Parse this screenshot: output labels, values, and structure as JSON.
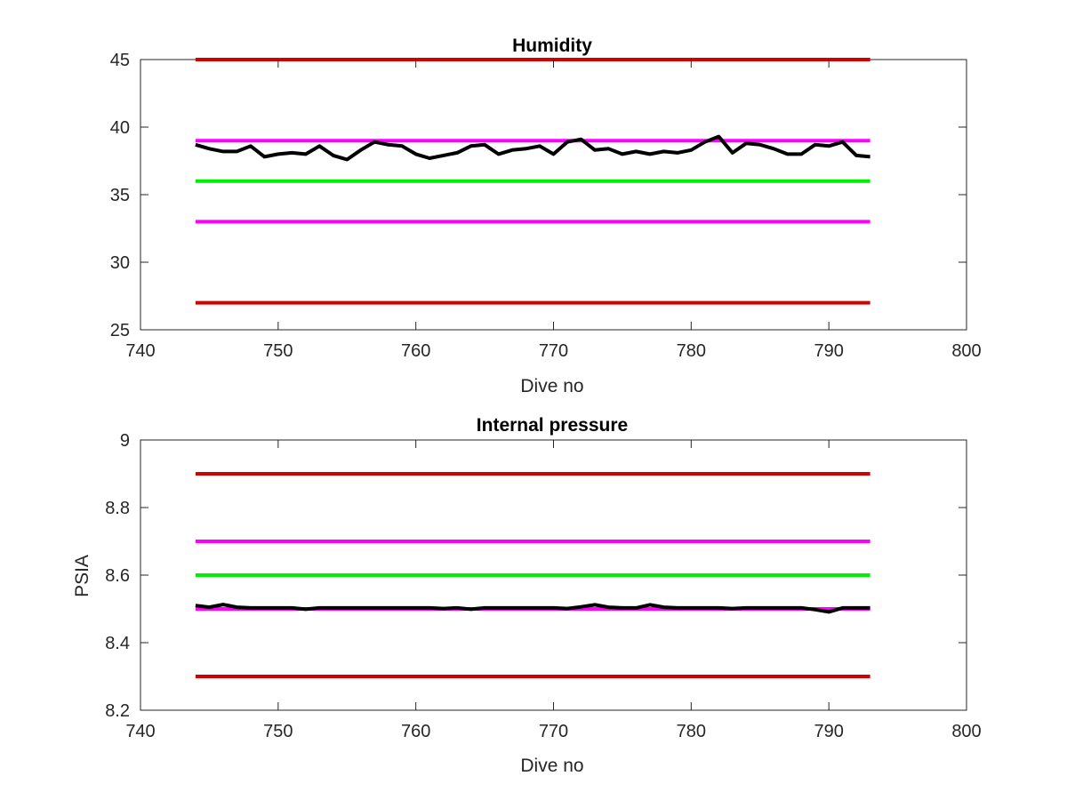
{
  "colors": {
    "red": "#d40000",
    "magenta": "#ff00ff",
    "green": "#00ee00",
    "data": "#000000",
    "axis": "#262626"
  },
  "chart_data": [
    {
      "type": "line",
      "title": "Humidity",
      "xlabel": "Dive no",
      "ylabel": "",
      "xlim": [
        740,
        800
      ],
      "ylim": [
        25,
        45
      ],
      "xticks": [
        740,
        750,
        760,
        770,
        780,
        790,
        800
      ],
      "yticks": [
        25,
        30,
        35,
        40,
        45
      ],
      "grid": false,
      "series": [
        {
          "color_key": "red",
          "x": [
            744,
            793
          ],
          "y": [
            45,
            45
          ]
        },
        {
          "color_key": "magenta",
          "x": [
            744,
            793
          ],
          "y": [
            39,
            39
          ]
        },
        {
          "color_key": "green",
          "x": [
            744,
            793
          ],
          "y": [
            36,
            36
          ]
        },
        {
          "color_key": "magenta",
          "x": [
            744,
            793
          ],
          "y": [
            33,
            33
          ]
        },
        {
          "color_key": "red",
          "x": [
            744,
            793
          ],
          "y": [
            27,
            27
          ]
        },
        {
          "color_key": "data",
          "x": [
            744,
            745,
            746,
            747,
            748,
            749,
            750,
            751,
            752,
            753,
            754,
            755,
            756,
            757,
            758,
            759,
            760,
            761,
            762,
            763,
            764,
            765,
            766,
            767,
            768,
            769,
            770,
            771,
            772,
            773,
            774,
            775,
            776,
            777,
            778,
            779,
            780,
            781,
            782,
            783,
            784,
            785,
            786,
            787,
            788,
            789,
            790,
            791,
            792,
            793
          ],
          "y": [
            38.7,
            38.4,
            38.2,
            38.2,
            38.6,
            37.8,
            38.0,
            38.1,
            38.0,
            38.6,
            37.9,
            37.6,
            38.3,
            38.9,
            38.7,
            38.6,
            38.0,
            37.7,
            37.9,
            38.1,
            38.6,
            38.7,
            38.0,
            38.3,
            38.4,
            38.6,
            38.0,
            38.9,
            39.1,
            38.3,
            38.4,
            38.0,
            38.2,
            38.0,
            38.2,
            38.1,
            38.3,
            38.9,
            39.3,
            38.1,
            38.8,
            38.7,
            38.4,
            38.0,
            38.0,
            38.7,
            38.6,
            38.9,
            37.9,
            37.8
          ]
        }
      ]
    },
    {
      "type": "line",
      "title": "Internal pressure",
      "xlabel": "Dive no",
      "ylabel": "PSIA",
      "xlim": [
        740,
        800
      ],
      "ylim": [
        8.2,
        9
      ],
      "xticks": [
        740,
        750,
        760,
        770,
        780,
        790,
        800
      ],
      "yticks": [
        8.2,
        8.4,
        8.6,
        8.8,
        9
      ],
      "ytick_labels": [
        "8.2",
        "8.4",
        "8.6",
        "8.8",
        "9"
      ],
      "grid": false,
      "series": [
        {
          "color_key": "red",
          "x": [
            744,
            793
          ],
          "y": [
            8.9,
            8.9
          ]
        },
        {
          "color_key": "magenta",
          "x": [
            744,
            793
          ],
          "y": [
            8.7,
            8.7
          ]
        },
        {
          "color_key": "green",
          "x": [
            744,
            793
          ],
          "y": [
            8.6,
            8.6
          ]
        },
        {
          "color_key": "magenta",
          "x": [
            744,
            793
          ],
          "y": [
            8.5,
            8.5
          ]
        },
        {
          "color_key": "red",
          "x": [
            744,
            793
          ],
          "y": [
            8.3,
            8.3
          ]
        },
        {
          "color_key": "data",
          "x": [
            744,
            745,
            746,
            747,
            748,
            749,
            750,
            751,
            752,
            753,
            754,
            755,
            756,
            757,
            758,
            759,
            760,
            761,
            762,
            763,
            764,
            765,
            766,
            767,
            768,
            769,
            770,
            771,
            772,
            773,
            774,
            775,
            776,
            777,
            778,
            779,
            780,
            781,
            782,
            783,
            784,
            785,
            786,
            787,
            788,
            789,
            790,
            791,
            792,
            793
          ],
          "y": [
            8.51,
            8.505,
            8.513,
            8.505,
            8.503,
            8.503,
            8.503,
            8.503,
            8.499,
            8.503,
            8.503,
            8.503,
            8.503,
            8.503,
            8.503,
            8.503,
            8.503,
            8.503,
            8.501,
            8.503,
            8.499,
            8.503,
            8.503,
            8.503,
            8.503,
            8.503,
            8.503,
            8.501,
            8.506,
            8.512,
            8.505,
            8.503,
            8.503,
            8.512,
            8.505,
            8.503,
            8.503,
            8.503,
            8.503,
            8.501,
            8.503,
            8.503,
            8.503,
            8.503,
            8.503,
            8.498,
            8.491,
            8.503,
            8.503,
            8.503
          ]
        }
      ]
    }
  ]
}
